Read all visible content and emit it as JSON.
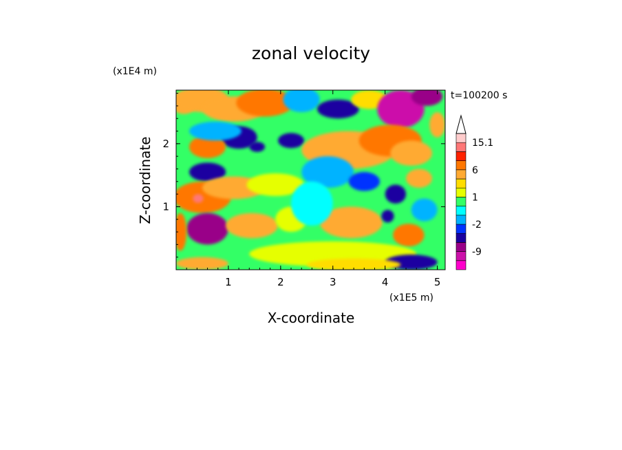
{
  "chart_data": {
    "type": "heatmap",
    "title": "zonal velocity",
    "xlabel": "X-coordinate",
    "ylabel": "Z-coordinate",
    "x_unit": "(x1E5 m)",
    "y_unit": "(x1E4 m)",
    "time_label": "t=100200 s",
    "xlim": [
      0,
      5.15
    ],
    "ylim": [
      0,
      2.85
    ],
    "x_ticks": [
      1,
      2,
      3,
      4,
      5
    ],
    "y_ticks": [
      1,
      2
    ],
    "colorbar": {
      "levels": [
        -15,
        -12,
        -9,
        -6,
        -3,
        -2,
        -1,
        0,
        1,
        2,
        3,
        6,
        9,
        12,
        15.1
      ],
      "colors": [
        "#ff00cc",
        "#cc11aa",
        "#990088",
        "#1a00a0",
        "#0033ff",
        "#00b3ff",
        "#00ffff",
        "#33ff66",
        "#e6ff00",
        "#ffdd00",
        "#ffaa33",
        "#ff7700",
        "#ff2200",
        "#ff7777",
        "#ffcccc"
      ],
      "labels": [
        {
          "value": -9,
          "text": "-9"
        },
        {
          "value": -2,
          "text": "-2"
        },
        {
          "value": 1,
          "text": "1"
        },
        {
          "value": 6,
          "text": "6"
        },
        {
          "value": 15.1,
          "text": "15.1"
        }
      ]
    },
    "field_sketch": [
      {
        "x": 0.15,
        "z": 2.65,
        "w": 0.25,
        "h": 0.18,
        "v": 5
      },
      {
        "x": 0.5,
        "z": 2.7,
        "w": 0.5,
        "h": 0.2,
        "v": 3
      },
      {
        "x": 1.1,
        "z": 2.55,
        "w": 0.6,
        "h": 0.2,
        "v": 4
      },
      {
        "x": 1.7,
        "z": 2.65,
        "w": 0.55,
        "h": 0.22,
        "v": 6
      },
      {
        "x": 2.4,
        "z": 2.7,
        "w": 0.35,
        "h": 0.2,
        "v": -2
      },
      {
        "x": 3.1,
        "z": 2.55,
        "w": 0.4,
        "h": 0.15,
        "v": -6
      },
      {
        "x": 3.7,
        "z": 2.7,
        "w": 0.35,
        "h": 0.15,
        "v": 2
      },
      {
        "x": 4.3,
        "z": 2.55,
        "w": 0.45,
        "h": 0.3,
        "v": -10
      },
      {
        "x": 4.8,
        "z": 2.75,
        "w": 0.3,
        "h": 0.15,
        "v": -8
      },
      {
        "x": 1.2,
        "z": 2.1,
        "w": 0.35,
        "h": 0.18,
        "v": -6
      },
      {
        "x": 2.2,
        "z": 2.05,
        "w": 0.25,
        "h": 0.12,
        "v": -5
      },
      {
        "x": 0.6,
        "z": 1.95,
        "w": 0.35,
        "h": 0.18,
        "v": 6
      },
      {
        "x": 0.75,
        "z": 2.2,
        "w": 0.5,
        "h": 0.15,
        "v": -2
      },
      {
        "x": 3.3,
        "z": 1.9,
        "w": 0.9,
        "h": 0.3,
        "v": 4
      },
      {
        "x": 4.1,
        "z": 2.05,
        "w": 0.6,
        "h": 0.25,
        "v": 7
      },
      {
        "x": 4.5,
        "z": 1.85,
        "w": 0.4,
        "h": 0.2,
        "v": 5
      },
      {
        "x": 0.6,
        "z": 1.55,
        "w": 0.35,
        "h": 0.15,
        "v": -6
      },
      {
        "x": 0.5,
        "z": 1.15,
        "w": 0.55,
        "h": 0.25,
        "v": 7
      },
      {
        "x": 0.42,
        "z": 1.13,
        "w": 0.1,
        "h": 0.07,
        "v": 12
      },
      {
        "x": 1.1,
        "z": 1.3,
        "w": 0.6,
        "h": 0.18,
        "v": 4
      },
      {
        "x": 1.9,
        "z": 1.35,
        "w": 0.55,
        "h": 0.18,
        "v": 1
      },
      {
        "x": 2.9,
        "z": 1.55,
        "w": 0.5,
        "h": 0.25,
        "v": -2
      },
      {
        "x": 3.6,
        "z": 1.4,
        "w": 0.3,
        "h": 0.15,
        "v": -3
      },
      {
        "x": 4.2,
        "z": 1.2,
        "w": 0.2,
        "h": 0.15,
        "v": -6
      },
      {
        "x": 4.65,
        "z": 1.45,
        "w": 0.25,
        "h": 0.15,
        "v": 4
      },
      {
        "x": 0.6,
        "z": 0.65,
        "w": 0.4,
        "h": 0.25,
        "v": -7
      },
      {
        "x": 1.45,
        "z": 0.7,
        "w": 0.5,
        "h": 0.2,
        "v": 3
      },
      {
        "x": 2.2,
        "z": 0.8,
        "w": 0.3,
        "h": 0.2,
        "v": 1
      },
      {
        "x": 3.35,
        "z": 0.75,
        "w": 0.6,
        "h": 0.25,
        "v": 4
      },
      {
        "x": 4.45,
        "z": 0.55,
        "w": 0.3,
        "h": 0.18,
        "v": 6
      },
      {
        "x": 4.05,
        "z": 0.85,
        "w": 0.12,
        "h": 0.1,
        "v": -6
      },
      {
        "x": 3.0,
        "z": 0.25,
        "w": 1.6,
        "h": 0.2,
        "v": 1
      },
      {
        "x": 4.5,
        "z": 0.12,
        "w": 0.5,
        "h": 0.12,
        "v": -6
      },
      {
        "x": 3.4,
        "z": 0.08,
        "w": 0.9,
        "h": 0.1,
        "v": 2
      },
      {
        "x": 0.5,
        "z": 0.1,
        "w": 0.5,
        "h": 0.1,
        "v": 4
      },
      {
        "x": 4.75,
        "z": 0.95,
        "w": 0.25,
        "h": 0.18,
        "v": -2
      },
      {
        "x": 2.6,
        "z": 1.05,
        "w": 0.4,
        "h": 0.35,
        "v": -1
      },
      {
        "x": 0.08,
        "z": 0.6,
        "w": 0.12,
        "h": 0.3,
        "v": 8
      },
      {
        "x": 5.0,
        "z": 2.3,
        "w": 0.15,
        "h": 0.2,
        "v": 5
      },
      {
        "x": 1.55,
        "z": 1.95,
        "w": 0.15,
        "h": 0.08,
        "v": -6
      }
    ]
  }
}
